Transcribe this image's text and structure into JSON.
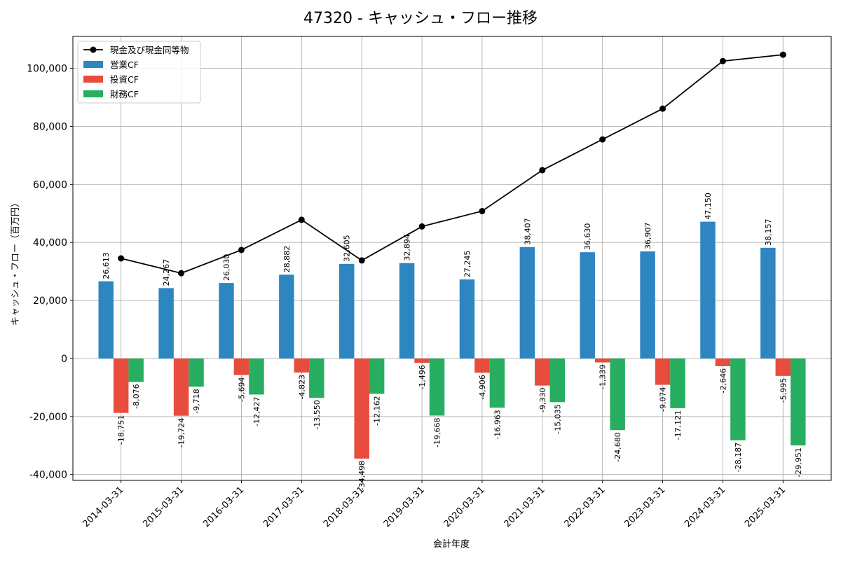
{
  "chart_data": {
    "type": "bar",
    "title": "47320 - キャッシュ・フロー推移",
    "xlabel": "会計年度",
    "ylabel": "キャッシュ・フロー（百万円）",
    "ylim": [
      -42000,
      111000
    ],
    "yticks": [
      -40000,
      -20000,
      0,
      20000,
      40000,
      60000,
      80000,
      100000
    ],
    "ytick_labels": [
      "-40,000",
      "-20,000",
      "0",
      "20,000",
      "40,000",
      "60,000",
      "80,000",
      "100,000"
    ],
    "grid": true,
    "legend_position": "top-left",
    "categories": [
      "2014-03-31",
      "2015-03-31",
      "2016-03-31",
      "2017-03-31",
      "2018-03-31",
      "2019-03-31",
      "2020-03-31",
      "2021-03-31",
      "2022-03-31",
      "2023-03-31",
      "2024-03-31",
      "2025-03-31"
    ],
    "series": [
      {
        "name": "営業CF",
        "kind": "bar",
        "color": "#2e86c1",
        "values": [
          26613,
          24267,
          26030,
          28882,
          32605,
          32894,
          27245,
          38407,
          36630,
          36907,
          47150,
          38157
        ],
        "labels": [
          "26,613",
          "24,267",
          "26,030",
          "28,882",
          "32,605",
          "32,894",
          "27,245",
          "38,407",
          "36,630",
          "36,907",
          "47,150",
          "38,157"
        ]
      },
      {
        "name": "投資CF",
        "kind": "bar",
        "color": "#e74c3c",
        "values": [
          -18751,
          -19724,
          -5694,
          -4823,
          -34498,
          -1496,
          -4906,
          -9330,
          -1339,
          -9074,
          -2646,
          -5995
        ],
        "labels": [
          "-18,751",
          "-19,724",
          "-5,694",
          "-4,823",
          "-34,498",
          "-1,496",
          "-4,906",
          "-9,330",
          "-1,339",
          "-9,074",
          "-2,646",
          "-5,995"
        ]
      },
      {
        "name": "財務CF",
        "kind": "bar",
        "color": "#27ae60",
        "values": [
          -8076,
          -9718,
          -12427,
          -13550,
          -12162,
          -19668,
          -16963,
          -15035,
          -24680,
          -17121,
          -28187,
          -29951
        ],
        "labels": [
          "-8,076",
          "-9,718",
          "-12,427",
          "-13,550",
          "-12,162",
          "-19,668",
          "-16,963",
          "-15,035",
          "-24,680",
          "-17,121",
          "-28,187",
          "-29,951"
        ]
      },
      {
        "name": "現金及び現金同等物",
        "kind": "line",
        "color": "#000000",
        "values": [
          34500,
          29400,
          37400,
          47800,
          33800,
          45500,
          50800,
          64900,
          75500,
          86100,
          102500,
          104700
        ]
      }
    ]
  }
}
